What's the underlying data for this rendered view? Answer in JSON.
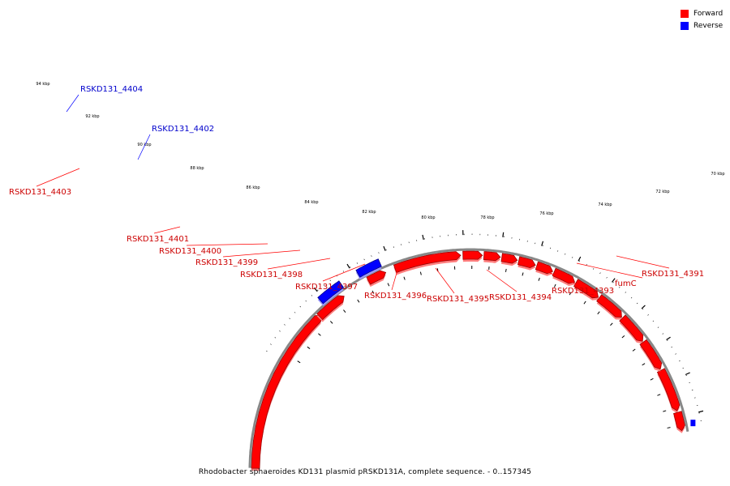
{
  "legend": {
    "items": [
      {
        "label": "Forward",
        "color": "#ff0000"
      },
      {
        "label": "Reverse",
        "color": "#0000ff"
      }
    ]
  },
  "caption": "Rhodobacter sphaeroides KD131 plasmid pRSKD131A, complete sequence. - 0..157345",
  "colors": {
    "forward": "#ff0000",
    "forward_dark": "#990000",
    "forward_light": "#ff7f7f",
    "reverse": "#0000ff",
    "reverse_dark": "#000088",
    "reverse_light": "#9999ff",
    "backbone": "#888888",
    "label_forward": "#cc0000",
    "label_reverse": "#0000cc"
  },
  "ticks": [
    {
      "label": "70 kbp",
      "major": true
    },
    {
      "label": "72 kbp",
      "major": true
    },
    {
      "label": "74 kbp",
      "major": true
    },
    {
      "label": "76 kbp",
      "major": true
    },
    {
      "label": "78 kbp",
      "major": true
    },
    {
      "label": "80 kbp",
      "major": true
    },
    {
      "label": "82 kbp",
      "major": true
    },
    {
      "label": "84 kbp",
      "major": true
    },
    {
      "label": "86 kbp",
      "major": true
    },
    {
      "label": "88 kbp",
      "major": true
    },
    {
      "label": "90 kbp",
      "major": true
    },
    {
      "label": "92 kbp",
      "major": true
    },
    {
      "label": "94 kbp",
      "major": true
    }
  ],
  "genes": [
    {
      "label": "RSKD131_4404",
      "strand": "reverse"
    },
    {
      "label": "RSKD131_4402",
      "strand": "reverse"
    },
    {
      "label": "RSKD131_4403",
      "strand": "forward"
    },
    {
      "label": "RSKD131_4401",
      "strand": "forward"
    },
    {
      "label": "RSKD131_4400",
      "strand": "forward"
    },
    {
      "label": "RSKD131_4399",
      "strand": "forward"
    },
    {
      "label": "RSKD131_4398",
      "strand": "forward"
    },
    {
      "label": "RSKD131_4397",
      "strand": "forward"
    },
    {
      "label": "RSKD131_4396",
      "strand": "forward"
    },
    {
      "label": "RSKD131_4395",
      "strand": "forward"
    },
    {
      "label": "RSKD131_4394",
      "strand": "forward"
    },
    {
      "label": "RSKD131_4393",
      "strand": "forward"
    },
    {
      "label": "fumC",
      "strand": "forward"
    },
    {
      "label": "RSKD131_4391",
      "strand": "forward"
    }
  ]
}
